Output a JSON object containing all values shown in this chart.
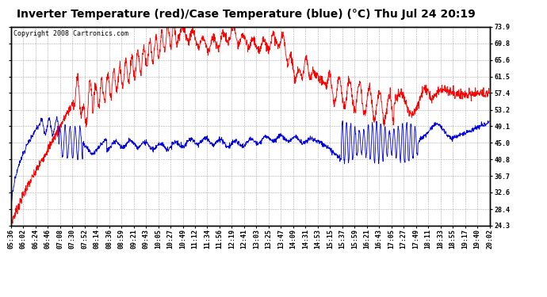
{
  "title": "Inverter Temperature (red)/Case Temperature (blue) (°C) Thu Jul 24 20:19",
  "copyright": "Copyright 2008 Cartronics.com",
  "ylabel_right_ticks": [
    73.9,
    69.8,
    65.6,
    61.5,
    57.4,
    53.2,
    49.1,
    45.0,
    40.8,
    36.7,
    32.6,
    28.4,
    24.3
  ],
  "ymin": 24.3,
  "ymax": 73.9,
  "x_tick_labels": [
    "05:36",
    "06:02",
    "06:24",
    "06:46",
    "07:08",
    "07:30",
    "07:52",
    "08:14",
    "08:36",
    "08:59",
    "09:21",
    "09:43",
    "10:05",
    "10:27",
    "10:49",
    "11:12",
    "11:34",
    "11:56",
    "12:19",
    "12:41",
    "13:03",
    "13:25",
    "13:47",
    "14:09",
    "14:31",
    "14:53",
    "15:15",
    "15:37",
    "15:59",
    "16:21",
    "16:43",
    "17:05",
    "17:27",
    "17:49",
    "18:11",
    "18:33",
    "18:55",
    "19:17",
    "19:40",
    "20:02"
  ],
  "bg_color": "#ffffff",
  "grid_color": "#aaaaaa",
  "red_color": "#ff0000",
  "blue_color": "#0000dd",
  "title_fontsize": 10,
  "copyright_fontsize": 6,
  "tick_fontsize": 6
}
